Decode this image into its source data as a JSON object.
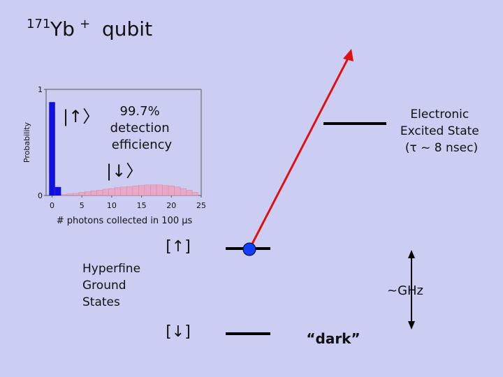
{
  "title": {
    "mass": "171",
    "element": "Yb",
    "charge": "+",
    "word": "qubit"
  },
  "chart_data": {
    "type": "bar",
    "x": [
      0,
      1,
      2,
      3,
      4,
      5,
      6,
      7,
      8,
      9,
      10,
      11,
      12,
      13,
      14,
      15,
      16,
      17,
      18,
      19,
      20,
      21,
      22,
      23,
      24,
      25
    ],
    "series": [
      {
        "name": "|↓〉",
        "color": "#eaa2bd",
        "values": [
          0,
          0.005,
          0.01,
          0.015,
          0.02,
          0.03,
          0.035,
          0.045,
          0.05,
          0.06,
          0.065,
          0.075,
          0.08,
          0.085,
          0.09,
          0.095,
          0.1,
          0.1,
          0.1,
          0.095,
          0.09,
          0.08,
          0.065,
          0.05,
          0.03,
          0
        ]
      },
      {
        "name": "|↑〉",
        "color": "#1010e0",
        "values": [
          0.88,
          0.08,
          0,
          0,
          0,
          0,
          0,
          0,
          0,
          0,
          0,
          0,
          0,
          0,
          0,
          0,
          0,
          0,
          0,
          0,
          0,
          0,
          0,
          0,
          0,
          0
        ]
      }
    ],
    "xlim": [
      -1,
      25
    ],
    "ylim": [
      0,
      1
    ],
    "xticks": [
      0,
      5,
      10,
      15,
      20,
      25
    ],
    "yticks": [
      0,
      1
    ],
    "ylabel": "Probability",
    "xlabel": "# photons collected in 100 µs",
    "annotation": [
      "99.7%",
      "detection",
      "efficiency"
    ]
  },
  "levels": {
    "excited": [
      "Electronic",
      "Excited State",
      "(τ ~ 8 nsec)"
    ],
    "up": "[↑]",
    "down": "[↓]",
    "ground": [
      "Hyperfine",
      "Ground",
      "States"
    ],
    "splitting": "~GHz",
    "dark": "“dark”"
  }
}
